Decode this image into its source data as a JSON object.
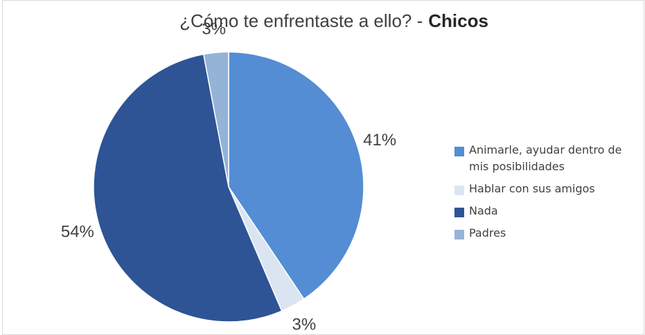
{
  "chart_data": {
    "type": "pie",
    "title": "¿Cómo te enfrentaste a ello? -",
    "title_emphasis": "Chicos",
    "categories": [
      "Animarle, ayudar dentro de mis posibilidades",
      "Hablar con sus amigos",
      "Nada",
      "Padres"
    ],
    "values": [
      41,
      3,
      54,
      3
    ],
    "value_labels": [
      "41%",
      "3%",
      "54%",
      "3%"
    ],
    "colors": [
      "#548dd4",
      "#dbe5f1",
      "#2e5496",
      "#95b3d7"
    ],
    "legend": "right"
  }
}
